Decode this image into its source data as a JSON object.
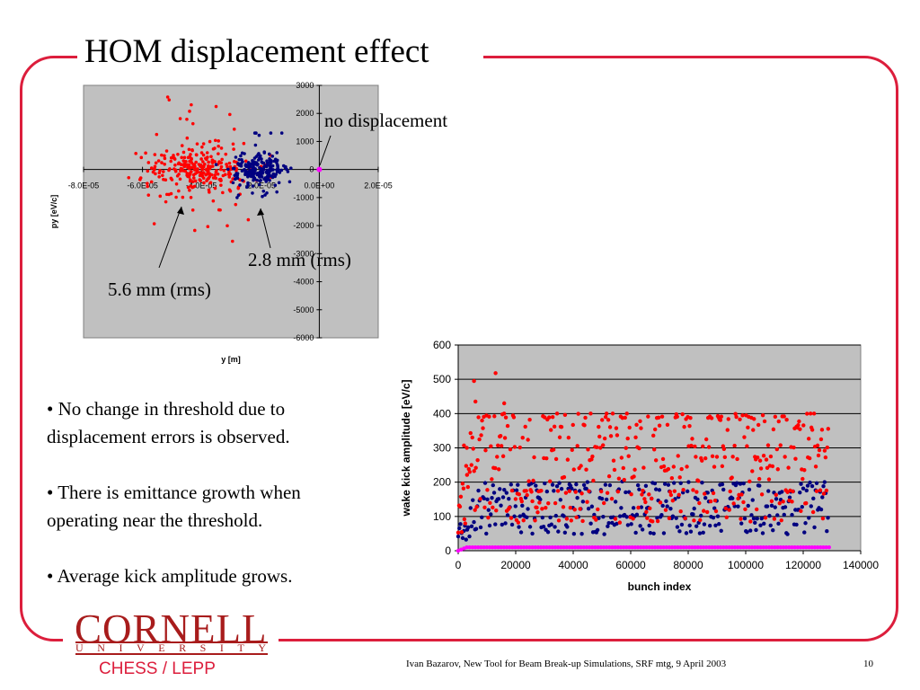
{
  "slide": {
    "title": "HOM displacement effect",
    "bullets": [
      "• No change in threshold due to displacement errors is observed.",
      "• There is emittance growth when operating near the threshold.",
      "• Average kick amplitude grows."
    ],
    "footer": "Ivan Bazarov, New Tool for Beam Break-up Simulations, SRF mtg, 9 April 2003",
    "page_number": "10",
    "logo": {
      "name": "CORNELL",
      "subtitle": "UNIVERSITY",
      "group": "CHESS / LEPP"
    },
    "colors": {
      "frame": "#dc1e3c",
      "red_series": "#ff0000",
      "blue_series": "#000080",
      "magenta_series": "#ff00ff",
      "plot_bg": "#c0c0c0"
    }
  },
  "annotations": {
    "no_displacement": "no displacement",
    "rms_blue": "2.8 mm (rms)",
    "rms_red": "5.6 mm (rms)"
  },
  "chart_data": [
    {
      "type": "scatter",
      "xlabel": "y [m]",
      "ylabel": "py [eV/c]",
      "xlim": [
        -8e-05,
        2e-05
      ],
      "ylim": [
        -6000,
        3000
      ],
      "x_ticks": [
        "-8.0E-05",
        "-6.0E-05",
        "-4.0E-05",
        "-2.0E-05",
        "0.0E+00",
        "2.0E-05"
      ],
      "y_ticks": [
        "3000",
        "2000",
        "1000",
        "0",
        "-1000",
        "-2000",
        "-3000",
        "-4000",
        "-5000",
        "-6000"
      ],
      "grid": false,
      "series": [
        {
          "color": "#ff0000",
          "center": [
            -4.1e-05,
            0
          ],
          "spread_rms_m": 5.6e-06,
          "count": 300
        },
        {
          "color": "#000080",
          "center": [
            -2.1e-05,
            0
          ],
          "spread_rms_m": 2.8e-06,
          "count": 220
        },
        {
          "color": "#ff00ff",
          "points": [
            [
              0,
              0
            ]
          ]
        }
      ]
    },
    {
      "type": "scatter",
      "xlabel": "bunch index",
      "ylabel": "wake kick amplitude [eV/c]",
      "xlim": [
        0,
        140000
      ],
      "ylim": [
        0,
        600
      ],
      "x_ticks": [
        "0",
        "20000",
        "40000",
        "60000",
        "80000",
        "100000",
        "120000",
        "140000"
      ],
      "y_ticks": [
        "600",
        "500",
        "400",
        "300",
        "200",
        "100",
        "0"
      ],
      "grid": true,
      "series": [
        {
          "color": "#ff0000",
          "band": [
            60,
            400
          ],
          "x_range": [
            0,
            129000
          ]
        },
        {
          "color": "#000080",
          "band": [
            50,
            200
          ],
          "x_range": [
            0,
            129000
          ]
        },
        {
          "color": "#ff00ff",
          "level": 10,
          "x_range": [
            0,
            129000
          ]
        }
      ]
    }
  ]
}
